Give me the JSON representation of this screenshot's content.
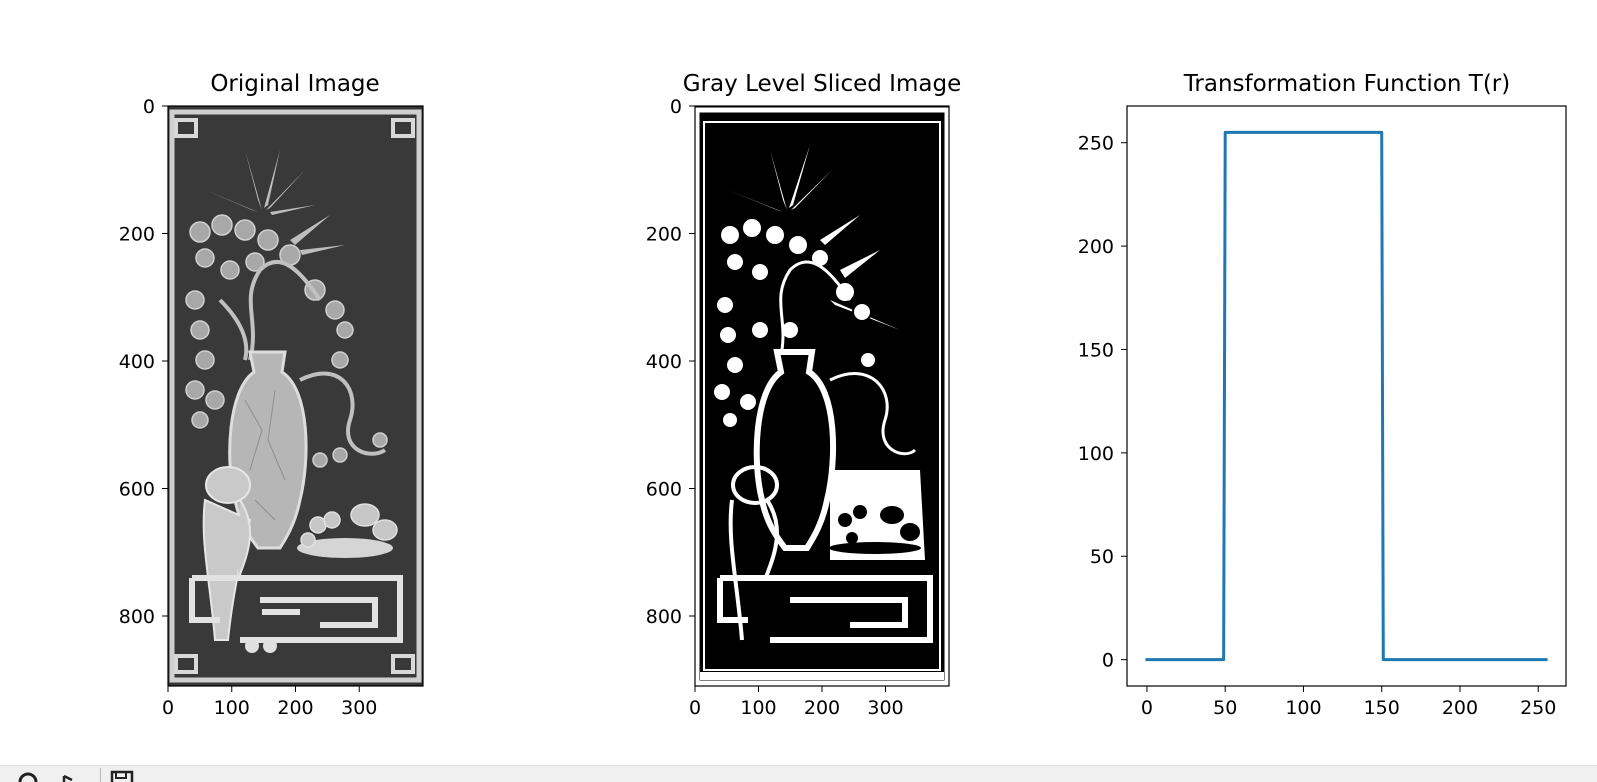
{
  "figure": {
    "toolbar_icons": [
      "home-icon",
      "pan-icon",
      "save-icon"
    ]
  },
  "chart_data": [
    {
      "type": "image",
      "title": "Original Image",
      "rendering": "grayscale relief carving: vase with flowers, bamboo leaves, cherry blossom branches, a qilin and a fruit plate on a stand, framed border",
      "image_size": [
        400,
        910
      ],
      "xlim": [
        0,
        400
      ],
      "ylim": [
        910,
        0
      ],
      "xticks": [
        0,
        100,
        200,
        300
      ],
      "yticks": [
        0,
        200,
        400,
        600,
        800
      ],
      "grid": false
    },
    {
      "type": "image",
      "title": "Gray Level Sliced Image",
      "rendering": "binary (black/white) version of the original after gray-level slicing",
      "image_size": [
        400,
        910
      ],
      "xlim": [
        0,
        400
      ],
      "ylim": [
        910,
        0
      ],
      "xticks": [
        0,
        100,
        200,
        300
      ],
      "yticks": [
        0,
        200,
        400,
        600,
        800
      ],
      "grid": false
    },
    {
      "type": "line",
      "title": "Transformation Function T(r)",
      "xlabel": "",
      "ylabel": "",
      "series": [
        {
          "color": "#1f77b4",
          "x": [
            0,
            49,
            50,
            150,
            151,
            255
          ],
          "y": [
            0,
            0,
            255,
            255,
            0,
            0
          ]
        }
      ],
      "xlim": [
        -12.75,
        267.75
      ],
      "ylim": [
        -12.75,
        267.75
      ],
      "xticks": [
        0,
        50,
        100,
        150,
        200,
        250
      ],
      "yticks": [
        0,
        50,
        100,
        150,
        200,
        250
      ],
      "grid": false
    }
  ]
}
